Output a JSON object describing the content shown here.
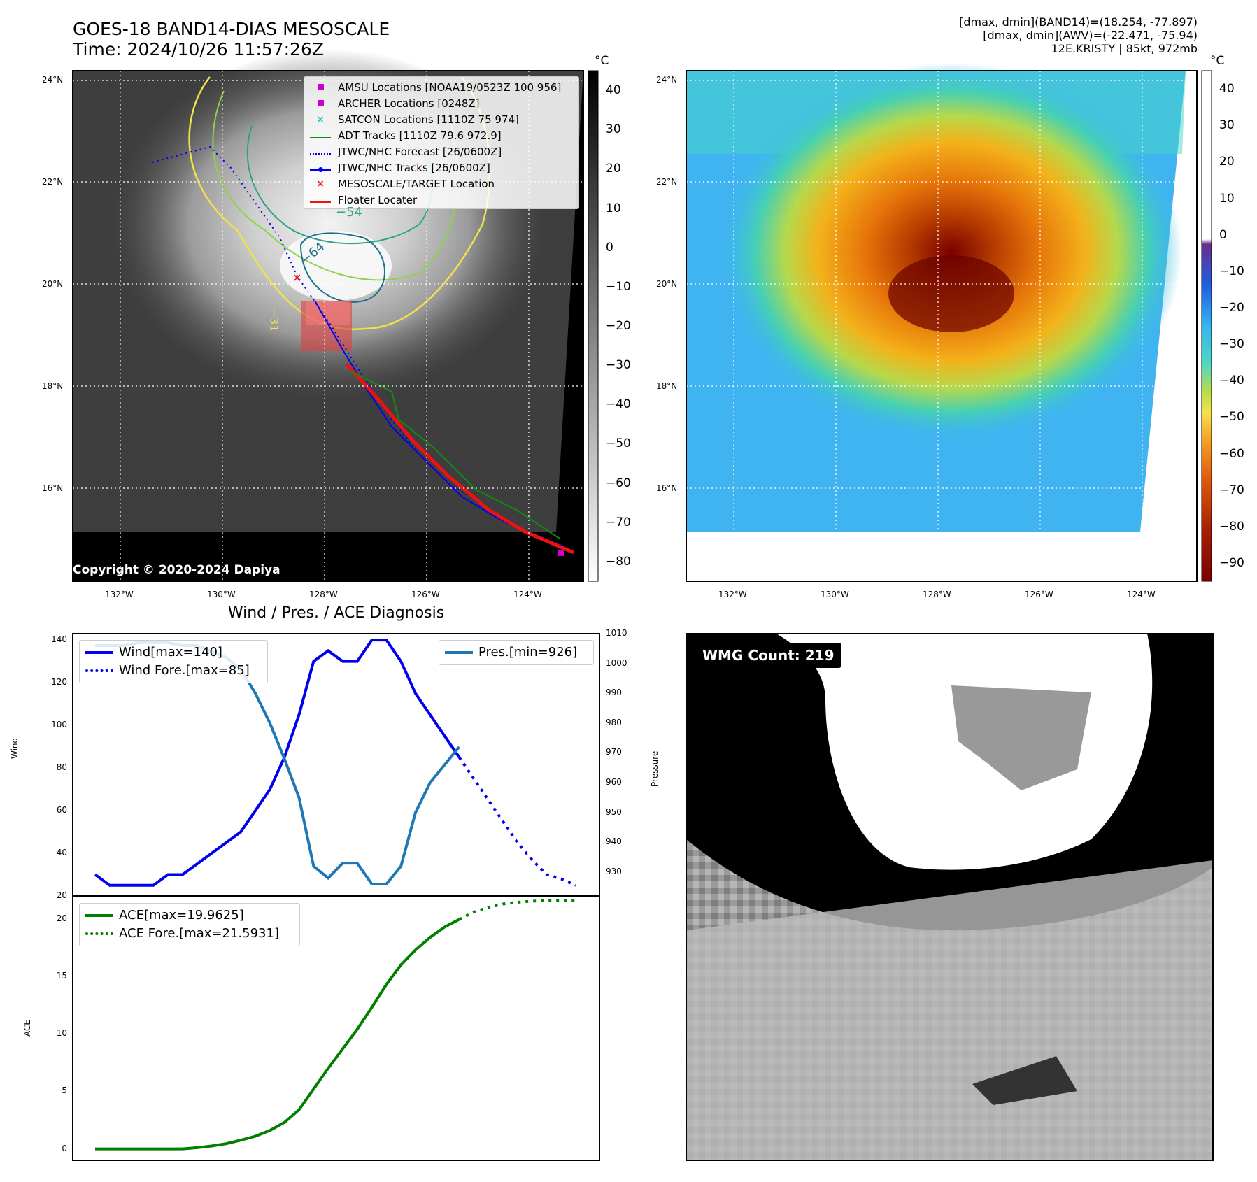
{
  "header": {
    "title_line1": "GOES-18 BAND14-DIAS MESOSCALE",
    "title_line2": "Time: 2024/10/26 11:57:26Z",
    "info_line1": "[dmax, dmin](BAND14)=(18.254, -77.897)",
    "info_line2": "[dmax, dmin](AWV)=(-22.471, -75.94)",
    "info_line3": "12E.KRISTY | 85kt, 972mb"
  },
  "map_ticks": {
    "lat_labels": [
      "24°N",
      "22°N",
      "20°N",
      "18°N",
      "16°N"
    ],
    "lon_labels": [
      "132°W",
      "130°W",
      "128°W",
      "126°W",
      "124°W"
    ]
  },
  "colorbar_left": {
    "unit": "°C",
    "ticks": [
      "40",
      "30",
      "20",
      "10",
      "0",
      "−10",
      "−20",
      "−30",
      "−40",
      "−50",
      "−60",
      "−70",
      "−80"
    ],
    "colors": {
      "top": "#000000",
      "bottom": "#ffffff"
    }
  },
  "colorbar_right": {
    "unit": "°C",
    "ticks": [
      "40",
      "30",
      "20",
      "10",
      "0",
      "−10",
      "−20",
      "−30",
      "−40",
      "−50",
      "−60",
      "−70",
      "−80",
      "−90"
    ]
  },
  "legend_map": {
    "items": [
      {
        "label": "AMSU Locations [NOAA19/0523Z 100 956]",
        "color": "#cc00cc",
        "marker": "square"
      },
      {
        "label": "ARCHER Locations [0248Z]",
        "color": "#cc00cc",
        "marker": "square"
      },
      {
        "label": "SATCON Locations [1110Z 75 974]",
        "color": "#19c6c6",
        "marker": "x"
      },
      {
        "label": "ADT Tracks [1110Z 79.6 972.9]",
        "color": "#138a13",
        "marker": "line"
      },
      {
        "label": "JTWC/NHC Forecast [26/0600Z]",
        "color": "#0000ee",
        "marker": "dotted"
      },
      {
        "label": "JTWC/NHC Tracks [26/0600Z]",
        "color": "#0000ee",
        "marker": "line-dot"
      },
      {
        "label": "MESOSCALE/TARGET Location",
        "color": "#ee1111",
        "marker": "x"
      },
      {
        "label": "Floater Locater",
        "color": "#ee1111",
        "marker": "line"
      }
    ]
  },
  "map_annotations": {
    "copyright": "Copyright © 2020-2024 Dapiya",
    "contour_labels": [
      "−54",
      "−64",
      "−31"
    ]
  },
  "wmg": {
    "label": "WMG Count: 219"
  },
  "chart_data": [
    {
      "type": "line",
      "title": "Wind / Pres. / ACE Diagnosis",
      "xlabel": "",
      "ylabel": "Wind",
      "y2label": "Pressure",
      "ylim": [
        20,
        143
      ],
      "y2lim": [
        922,
        1010
      ],
      "yticks": [
        "20",
        "40",
        "60",
        "80",
        "100",
        "120",
        "140"
      ],
      "y2ticks": [
        "930",
        "940",
        "950",
        "960",
        "970",
        "980",
        "990",
        "1000",
        "1010"
      ],
      "x": [
        0,
        1,
        2,
        3,
        4,
        5,
        6,
        7,
        8,
        9,
        10,
        11,
        12,
        13,
        14,
        15,
        16,
        17,
        18,
        19,
        20,
        21,
        22,
        23,
        24,
        25,
        26,
        27,
        28,
        29,
        30,
        31,
        32,
        33
      ],
      "series": [
        {
          "name": "Wind[max=140]",
          "color": "#0000ee",
          "style": "solid",
          "x": [
            0,
            1,
            2,
            3,
            4,
            5,
            6,
            7,
            8,
            9,
            10,
            11,
            12,
            13,
            14,
            15,
            16,
            17,
            18,
            19,
            20,
            21,
            22,
            23,
            24,
            25
          ],
          "values": [
            30,
            25,
            25,
            25,
            25,
            30,
            30,
            35,
            40,
            45,
            50,
            60,
            70,
            85,
            105,
            130,
            135,
            130,
            130,
            140,
            140,
            130,
            115,
            105,
            95,
            85
          ]
        },
        {
          "name": "Wind Fore.[max=85]",
          "color": "#0000ee",
          "style": "dotted",
          "x": [
            25,
            26,
            27,
            28,
            29,
            30,
            31,
            32,
            33
          ],
          "values": [
            85,
            75,
            65,
            55,
            45,
            37,
            30,
            28,
            25
          ]
        },
        {
          "name": "Pres.[min=926]",
          "color": "#1f77b4",
          "style": "solid",
          "axis": "right",
          "x": [
            0,
            1,
            2,
            3,
            4,
            5,
            6,
            7,
            8,
            9,
            10,
            11,
            12,
            13,
            14,
            15,
            16,
            17,
            18,
            19,
            20,
            21,
            22,
            23,
            24,
            25
          ],
          "values": [
            1006,
            1006,
            1006,
            1007,
            1007,
            1007,
            1006,
            1006,
            1004,
            1002,
            998,
            990,
            980,
            968,
            955,
            932,
            928,
            933,
            933,
            926,
            926,
            932,
            950,
            960,
            966,
            972
          ]
        }
      ]
    },
    {
      "type": "line",
      "ylabel": "ACE",
      "ylim": [
        -1,
        22
      ],
      "yticks": [
        "0",
        "5",
        "10",
        "15",
        "20"
      ],
      "series": [
        {
          "name": "ACE[max=19.9625]",
          "color": "#007f00",
          "style": "solid",
          "x": [
            0,
            1,
            2,
            3,
            4,
            5,
            6,
            7,
            8,
            9,
            10,
            11,
            12,
            13,
            14,
            15,
            16,
            17,
            18,
            19,
            20,
            21,
            22,
            23,
            24,
            25
          ],
          "values": [
            0,
            0,
            0,
            0,
            0,
            0,
            0,
            0.1,
            0.25,
            0.45,
            0.75,
            1.1,
            1.6,
            2.3,
            3.4,
            5.2,
            7.0,
            8.7,
            10.4,
            12.3,
            14.3,
            16.0,
            17.3,
            18.4,
            19.3,
            19.9625
          ]
        },
        {
          "name": "ACE Fore.[max=21.5931]",
          "color": "#007f00",
          "style": "dotted",
          "x": [
            25,
            26,
            27,
            28,
            29,
            30,
            31,
            32,
            33
          ],
          "values": [
            19.9625,
            20.6,
            21.0,
            21.3,
            21.45,
            21.55,
            21.59,
            21.593,
            21.5931
          ]
        }
      ]
    }
  ]
}
